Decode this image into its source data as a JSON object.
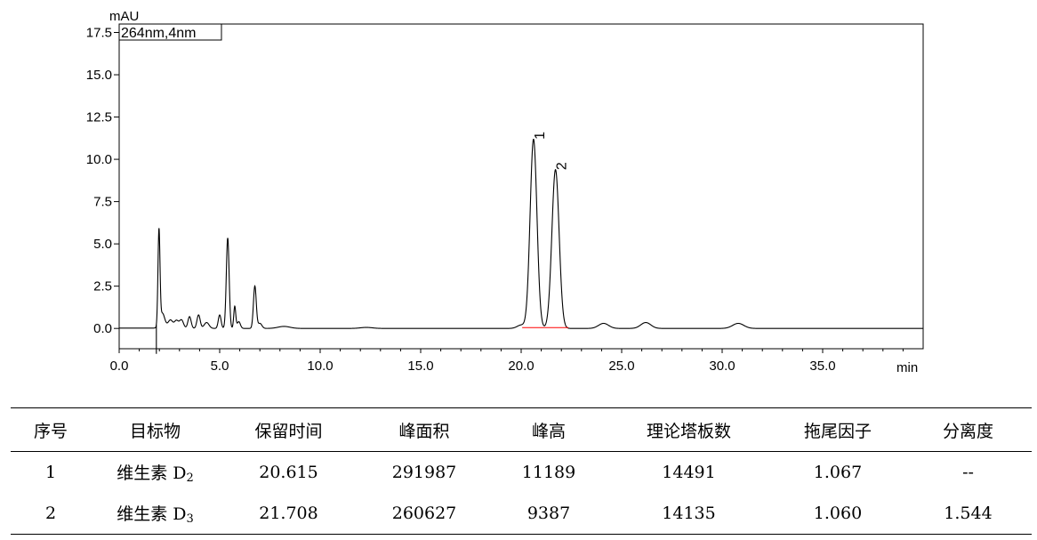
{
  "chart_data": {
    "type": "line",
    "y_unit_label": "mAU",
    "x_unit_label": "min",
    "channel_label": "264nm,4nm",
    "xlim": [
      0,
      40
    ],
    "ylim": [
      -1.2,
      18
    ],
    "x_ticks": [
      0.0,
      5.0,
      10.0,
      15.0,
      20.0,
      25.0,
      30.0,
      35.0
    ],
    "x_tick_labels": [
      "0.0",
      "5.0",
      "10.0",
      "15.0",
      "20.0",
      "25.0",
      "30.0",
      "35.0"
    ],
    "y_ticks": [
      0.0,
      2.5,
      5.0,
      7.5,
      10.0,
      12.5,
      15.0,
      17.5
    ],
    "y_tick_labels": [
      "0.0",
      "2.5",
      "5.0",
      "7.5",
      "10.0",
      "12.5",
      "15.0",
      "17.5"
    ],
    "grid": false,
    "series": [
      {
        "color": "#000000",
        "baseline": 0.0,
        "peaks": [
          {
            "t": 1.98,
            "h": 5.6,
            "w": 0.05
          },
          {
            "t": 2.15,
            "h": 0.9,
            "w": 0.12
          },
          {
            "t": 2.55,
            "h": 0.5,
            "w": 0.12
          },
          {
            "t": 2.85,
            "h": 0.45,
            "w": 0.1
          },
          {
            "t": 3.1,
            "h": 0.5,
            "w": 0.1
          },
          {
            "t": 3.5,
            "h": 0.7,
            "w": 0.08
          },
          {
            "t": 3.95,
            "h": 0.8,
            "w": 0.08
          },
          {
            "t": 4.35,
            "h": 0.35,
            "w": 0.12
          },
          {
            "t": 5.0,
            "h": 0.8,
            "w": 0.07
          },
          {
            "t": 5.4,
            "h": 5.35,
            "w": 0.07
          },
          {
            "t": 5.75,
            "h": 1.3,
            "w": 0.05
          },
          {
            "t": 5.95,
            "h": 0.4,
            "w": 0.08
          },
          {
            "t": 6.75,
            "h": 2.5,
            "w": 0.07
          },
          {
            "t": 7.0,
            "h": 0.3,
            "w": 0.1
          },
          {
            "t": 8.2,
            "h": 0.12,
            "w": 0.3
          },
          {
            "t": 12.3,
            "h": 0.06,
            "w": 0.3
          },
          {
            "t": 20.0,
            "h": 0.2,
            "w": 0.2
          },
          {
            "t": 20.615,
            "h": 11.19,
            "w": 0.17
          },
          {
            "t": 21.708,
            "h": 9.39,
            "w": 0.18
          },
          {
            "t": 24.1,
            "h": 0.3,
            "w": 0.25
          },
          {
            "t": 26.2,
            "h": 0.35,
            "w": 0.25
          },
          {
            "t": 30.8,
            "h": 0.3,
            "w": 0.28
          }
        ],
        "dip": {
          "t": 1.85,
          "depth": -1.5
        }
      }
    ],
    "peak_labels": [
      {
        "text": "1",
        "t": 20.615,
        "h": 11.19
      },
      {
        "text": "2",
        "t": 21.708,
        "h": 9.39
      }
    ],
    "integration_baseline": {
      "color": "#ff0000",
      "t_start": 20.05,
      "t_end": 22.35,
      "y": 0.05
    }
  },
  "table": {
    "headers": [
      "序号",
      "目标物",
      "保留时间",
      "峰面积",
      "峰高",
      "理论塔板数",
      "拖尾因子",
      "分离度"
    ],
    "rows": [
      {
        "no": "1",
        "name": "维生素 D",
        "sub": "2",
        "rt": "20.615",
        "area": "291987",
        "height": "11189",
        "plates": "14491",
        "tailing": "1.067",
        "resolution": "--"
      },
      {
        "no": "2",
        "name": "维生素 D",
        "sub": "3",
        "rt": "21.708",
        "area": "260627",
        "height": "9387",
        "plates": "14135",
        "tailing": "1.060",
        "resolution": "1.544"
      }
    ]
  }
}
